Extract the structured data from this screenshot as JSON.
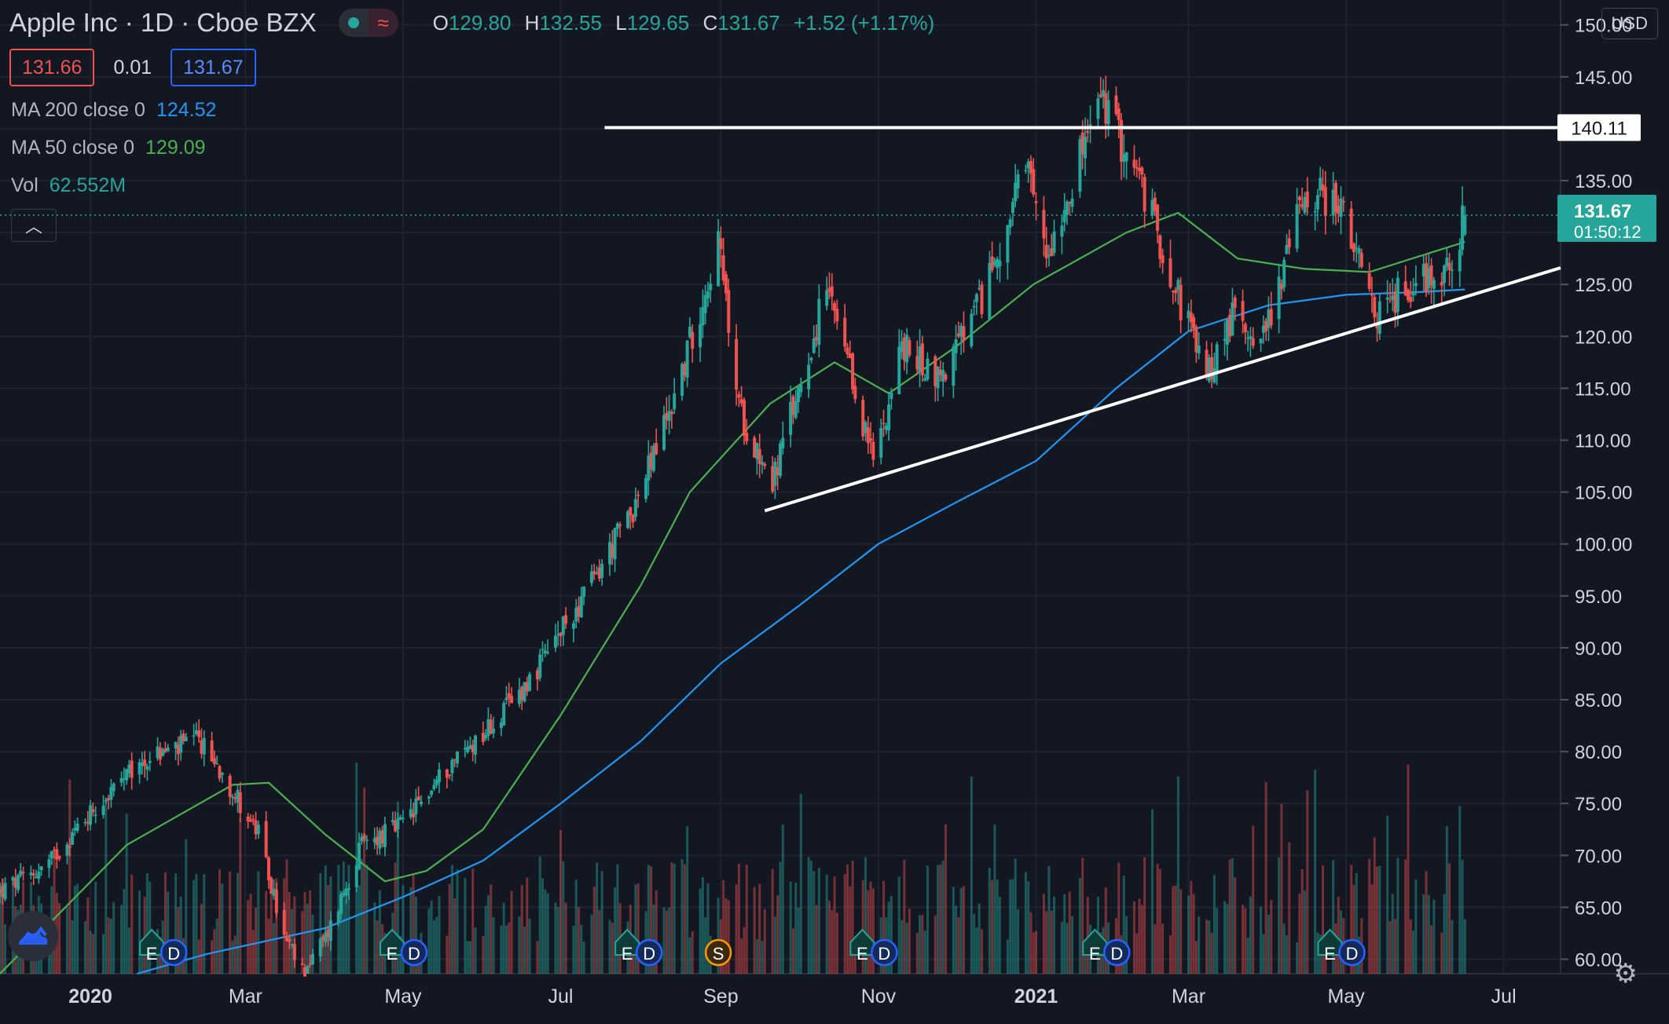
{
  "header": {
    "symbol_title": "Apple Inc · 1D · Cboe BZX",
    "ohlc": {
      "o_label": "O",
      "o": "129.80",
      "h_label": "H",
      "h": "132.55",
      "l_label": "L",
      "l": "129.65",
      "c_label": "C",
      "c": "131.67",
      "change": "+1.52 (+1.17%)"
    }
  },
  "quote": {
    "bid": "131.66",
    "spread": "0.01",
    "ask": "131.67"
  },
  "indicators": {
    "ma200": {
      "label": "MA 200 close 0",
      "value": "124.52"
    },
    "ma50": {
      "label": "MA 50 close 0",
      "value": "129.09"
    },
    "vol": {
      "label": "Vol",
      "value": "62.552M"
    }
  },
  "currency": "USD",
  "price_label": {
    "value": "131.67",
    "countdown": "01:50:12"
  },
  "resistance_label": "140.11",
  "colors": {
    "background": "#131722",
    "up": "#26a69a",
    "down": "#ef5350",
    "ma50": "#4caf50",
    "ma200": "#2196f3",
    "trendline": "#ffffff"
  },
  "chart_data": {
    "type": "candlestick",
    "symbol": "AAPL",
    "interval": "1D",
    "ylim": [
      58.6,
      152.4
    ],
    "y_ticks": [
      "60.00",
      "65.00",
      "70.00",
      "75.00",
      "80.00",
      "85.00",
      "90.00",
      "95.00",
      "100.00",
      "105.00",
      "110.00",
      "115.00",
      "120.00",
      "125.00",
      "130.00",
      "135.00",
      "140.00",
      "145.00",
      "150.00"
    ],
    "x_ticks": [
      {
        "date": "2020-01-01",
        "label": "2020",
        "bold": true
      },
      {
        "date": "2020-03-01",
        "label": "Mar"
      },
      {
        "date": "2020-05-01",
        "label": "May"
      },
      {
        "date": "2020-07-01",
        "label": "Jul"
      },
      {
        "date": "2020-09-01",
        "label": "Sep"
      },
      {
        "date": "2020-11-01",
        "label": "Nov"
      },
      {
        "date": "2021-01-01",
        "label": "2021",
        "bold": true
      },
      {
        "date": "2021-03-01",
        "label": "Mar"
      },
      {
        "date": "2021-05-01",
        "label": "May"
      },
      {
        "date": "2021-07-01",
        "label": "Jul"
      }
    ],
    "xlim": [
      "2019-11-27",
      "2021-07-23"
    ],
    "price_path": [
      [
        "2019-11-27",
        66.5
      ],
      [
        "2019-12-15",
        69
      ],
      [
        "2020-01-02",
        74.5
      ],
      [
        "2020-01-24",
        79.5
      ],
      [
        "2020-02-12",
        81
      ],
      [
        "2020-02-21",
        78
      ],
      [
        "2020-03-06",
        72
      ],
      [
        "2020-03-16",
        62
      ],
      [
        "2020-03-23",
        58.8
      ],
      [
        "2020-04-01",
        62
      ],
      [
        "2020-04-15",
        71
      ],
      [
        "2020-05-01",
        73
      ],
      [
        "2020-05-20",
        79
      ],
      [
        "2020-06-08",
        83.5
      ],
      [
        "2020-06-25",
        89
      ],
      [
        "2020-07-15",
        97
      ],
      [
        "2020-08-01",
        105
      ],
      [
        "2020-08-15",
        115
      ],
      [
        "2020-08-31",
        129
      ],
      [
        "2020-09-08",
        113
      ],
      [
        "2020-09-21",
        106
      ],
      [
        "2020-10-12",
        124.5
      ],
      [
        "2020-10-30",
        108
      ],
      [
        "2020-11-10",
        119
      ],
      [
        "2020-11-25",
        116
      ],
      [
        "2020-12-10",
        123
      ],
      [
        "2020-12-28",
        136
      ],
      [
        "2021-01-05",
        128
      ],
      [
        "2021-01-26",
        143
      ],
      [
        "2021-02-10",
        135
      ],
      [
        "2021-03-08",
        116
      ],
      [
        "2021-03-18",
        122
      ],
      [
        "2021-03-30",
        120
      ],
      [
        "2021-04-15",
        134
      ],
      [
        "2021-04-28",
        133
      ],
      [
        "2021-05-12",
        122
      ],
      [
        "2021-05-27",
        125.3
      ],
      [
        "2021-06-10",
        126.5
      ],
      [
        "2021-06-16",
        131.67
      ]
    ],
    "ma50_path": [
      [
        "2019-11-27",
        58.6
      ],
      [
        "2020-01-15",
        71
      ],
      [
        "2020-02-25",
        76.8
      ],
      [
        "2020-03-10",
        77
      ],
      [
        "2020-04-01",
        72
      ],
      [
        "2020-04-24",
        67.5
      ],
      [
        "2020-05-10",
        68.5
      ],
      [
        "2020-06-01",
        72.5
      ],
      [
        "2020-07-01",
        83.5
      ],
      [
        "2020-08-01",
        96
      ],
      [
        "2020-08-20",
        105
      ],
      [
        "2020-09-20",
        113.5
      ],
      [
        "2020-10-15",
        117.5
      ],
      [
        "2020-11-05",
        114.5
      ],
      [
        "2020-12-01",
        119
      ],
      [
        "2020-12-31",
        125
      ],
      [
        "2021-02-05",
        130
      ],
      [
        "2021-02-25",
        131.9
      ],
      [
        "2021-03-20",
        127.5
      ],
      [
        "2021-04-15",
        126.5
      ],
      [
        "2021-05-10",
        126.2
      ],
      [
        "2021-06-16",
        129.09
      ]
    ],
    "ma200_path": [
      [
        "2020-01-19",
        58.6
      ],
      [
        "2020-02-15",
        60.5
      ],
      [
        "2020-04-01",
        63
      ],
      [
        "2020-05-01",
        66
      ],
      [
        "2020-06-01",
        69.5
      ],
      [
        "2020-07-01",
        75
      ],
      [
        "2020-08-01",
        81
      ],
      [
        "2020-09-01",
        88.5
      ],
      [
        "2020-10-01",
        94
      ],
      [
        "2020-11-01",
        100
      ],
      [
        "2020-12-01",
        104
      ],
      [
        "2021-01-01",
        108
      ],
      [
        "2021-02-01",
        115
      ],
      [
        "2021-03-01",
        120.5
      ],
      [
        "2021-04-01",
        123
      ],
      [
        "2021-05-01",
        124
      ],
      [
        "2021-06-01",
        124.3
      ],
      [
        "2021-06-16",
        124.52
      ]
    ],
    "annotations": [
      {
        "type": "horizontal_line",
        "price": 140.11,
        "from": "2020-07-18",
        "to": "2021-07-23",
        "label": "140.11"
      },
      {
        "type": "trendline",
        "from": [
          "2020-09-18",
          103.2
        ],
        "to": [
          "2021-07-23",
          126.6
        ]
      }
    ],
    "events": [
      {
        "date": "2020-01-29",
        "labels": [
          "E",
          "D"
        ]
      },
      {
        "date": "2020-05-01",
        "labels": [
          "E",
          "D"
        ]
      },
      {
        "date": "2020-07-31",
        "labels": [
          "E",
          "D"
        ]
      },
      {
        "date": "2020-08-31",
        "labels": [
          "S"
        ]
      },
      {
        "date": "2020-10-30",
        "labels": [
          "E",
          "D"
        ]
      },
      {
        "date": "2021-01-28",
        "labels": [
          "E",
          "D"
        ]
      },
      {
        "date": "2021-04-29",
        "labels": [
          "E",
          "D"
        ]
      }
    ],
    "last": {
      "date": "2021-06-16",
      "close": 131.67
    },
    "volume_max_label": "62.552M"
  }
}
